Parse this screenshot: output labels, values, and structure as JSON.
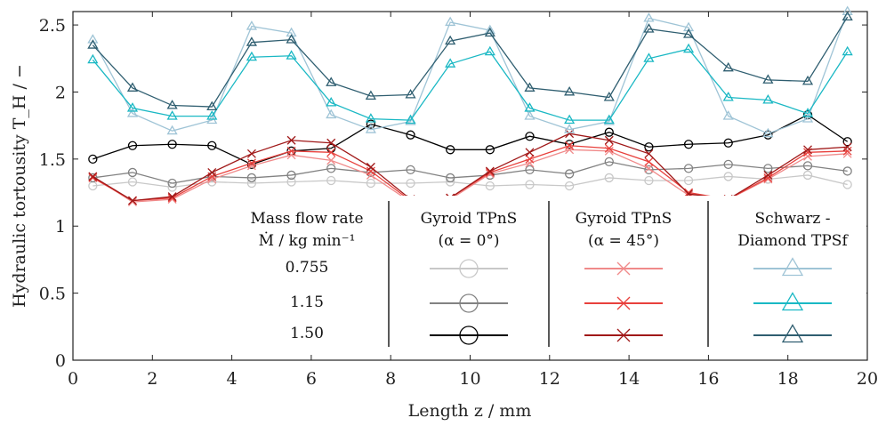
{
  "chart_data": {
    "type": "line",
    "xlabel": "Length z / mm",
    "ylabel": "Hydraulic tortousity T_H / −",
    "xlim": [
      0,
      20
    ],
    "ylim": [
      0,
      2.6
    ],
    "xticks": [
      "0",
      "2",
      "4",
      "6",
      "8",
      "10",
      "12",
      "14",
      "16",
      "18",
      "20"
    ],
    "yticks": [
      "0",
      "0.5",
      "1",
      "1.5",
      "2",
      "2.5"
    ],
    "x": [
      0.5,
      1.5,
      2.5,
      3.5,
      4.5,
      5.5,
      6.5,
      7.5,
      8.5,
      9.5,
      10.5,
      11.5,
      12.5,
      13.5,
      14.5,
      15.5,
      16.5,
      17.5,
      18.5,
      19.5
    ],
    "series": [
      {
        "name": "Gyroid TPnS (α = 0°), 0.755",
        "group": "gyroid0",
        "flow": "0.755",
        "marker": "circle",
        "color": "#c8c8c8",
        "values": [
          1.3,
          1.33,
          1.29,
          1.33,
          1.32,
          1.33,
          1.34,
          1.32,
          1.32,
          1.33,
          1.3,
          1.31,
          1.3,
          1.36,
          1.34,
          1.34,
          1.37,
          1.35,
          1.38,
          1.31
        ]
      },
      {
        "name": "Gyroid TPnS (α = 0°), 1.15",
        "group": "gyroid0",
        "flow": "1.15",
        "marker": "circle",
        "color": "#828282",
        "values": [
          1.36,
          1.4,
          1.32,
          1.37,
          1.36,
          1.38,
          1.43,
          1.4,
          1.42,
          1.36,
          1.38,
          1.42,
          1.39,
          1.48,
          1.42,
          1.43,
          1.46,
          1.43,
          1.45,
          1.41
        ]
      },
      {
        "name": "Gyroid TPnS (α = 0°), 1.50",
        "group": "gyroid0",
        "flow": "1.50",
        "marker": "circle",
        "color": "#000000",
        "values": [
          1.5,
          1.6,
          1.61,
          1.6,
          1.46,
          1.56,
          1.58,
          1.76,
          1.68,
          1.57,
          1.57,
          1.67,
          1.61,
          1.7,
          1.59,
          1.61,
          1.62,
          1.68,
          1.83,
          1.63
        ]
      },
      {
        "name": "Gyroid TPnS (α = 45°), 0.755",
        "group": "gyroid45",
        "flow": "0.755",
        "marker": "x",
        "color": "#f08a8a",
        "values": [
          1.37,
          1.18,
          1.2,
          1.35,
          1.45,
          1.53,
          1.49,
          1.38,
          1.18,
          1.2,
          1.39,
          1.47,
          1.57,
          1.56,
          1.43,
          1.23,
          1.2,
          1.35,
          1.52,
          1.54
        ]
      },
      {
        "name": "Gyroid TPnS (α = 45°), 1.15",
        "group": "gyroid45",
        "flow": "1.15",
        "marker": "x",
        "color": "#e8403c",
        "values": [
          1.36,
          1.19,
          1.21,
          1.37,
          1.47,
          1.56,
          1.55,
          1.41,
          1.19,
          1.21,
          1.4,
          1.5,
          1.6,
          1.58,
          1.48,
          1.25,
          1.2,
          1.36,
          1.55,
          1.56
        ]
      },
      {
        "name": "Gyroid TPnS (α = 45°), 1.50",
        "group": "gyroid45",
        "flow": "1.50",
        "marker": "x",
        "color": "#a01818",
        "values": [
          1.37,
          1.19,
          1.22,
          1.4,
          1.54,
          1.64,
          1.62,
          1.44,
          1.2,
          1.21,
          1.41,
          1.55,
          1.69,
          1.64,
          1.54,
          1.24,
          1.2,
          1.38,
          1.57,
          1.59
        ]
      },
      {
        "name": "Schwarz - Diamond TPSf, 0.755",
        "group": "schwarz",
        "flow": "0.755",
        "marker": "triangle",
        "color": "#9fc4d6",
        "values": [
          2.39,
          1.84,
          1.71,
          1.79,
          2.49,
          2.44,
          1.83,
          1.72,
          1.78,
          2.52,
          2.46,
          1.82,
          1.72,
          1.78,
          2.55,
          2.48,
          1.82,
          1.69,
          1.8,
          2.6
        ]
      },
      {
        "name": "Schwarz - Diamond TPSf, 1.15",
        "group": "schwarz",
        "flow": "1.15",
        "marker": "triangle",
        "color": "#1ab8c4",
        "values": [
          2.24,
          1.88,
          1.82,
          1.82,
          2.26,
          2.27,
          1.92,
          1.8,
          1.79,
          2.21,
          2.3,
          1.88,
          1.79,
          1.79,
          2.25,
          2.32,
          1.96,
          1.94,
          1.84,
          2.3
        ]
      },
      {
        "name": "Schwarz - Diamond TPSf, 1.50",
        "group": "schwarz",
        "flow": "1.50",
        "marker": "triangle",
        "color": "#2f5e70",
        "values": [
          2.35,
          2.03,
          1.9,
          1.89,
          2.37,
          2.39,
          2.07,
          1.97,
          1.98,
          2.38,
          2.44,
          2.03,
          2.0,
          1.96,
          2.47,
          2.43,
          2.18,
          2.09,
          2.08,
          2.56
        ]
      }
    ],
    "legend": {
      "placement": "bottom-center",
      "flow_header_line1": "Mass flow rate",
      "flow_header_line2": "Ṁ / kg min⁻¹",
      "flow_rates": [
        "0.755",
        "1.15",
        "1.50"
      ],
      "groups": [
        {
          "key": "gyroid0",
          "line1": "Gyroid TPnS",
          "line2": "(α = 0°)"
        },
        {
          "key": "gyroid45",
          "line1": "Gyroid TPnS",
          "line2": "(α = 45°)"
        },
        {
          "key": "schwarz",
          "line1": "Schwarz -",
          "line2": "Diamond TPSf"
        }
      ]
    }
  }
}
